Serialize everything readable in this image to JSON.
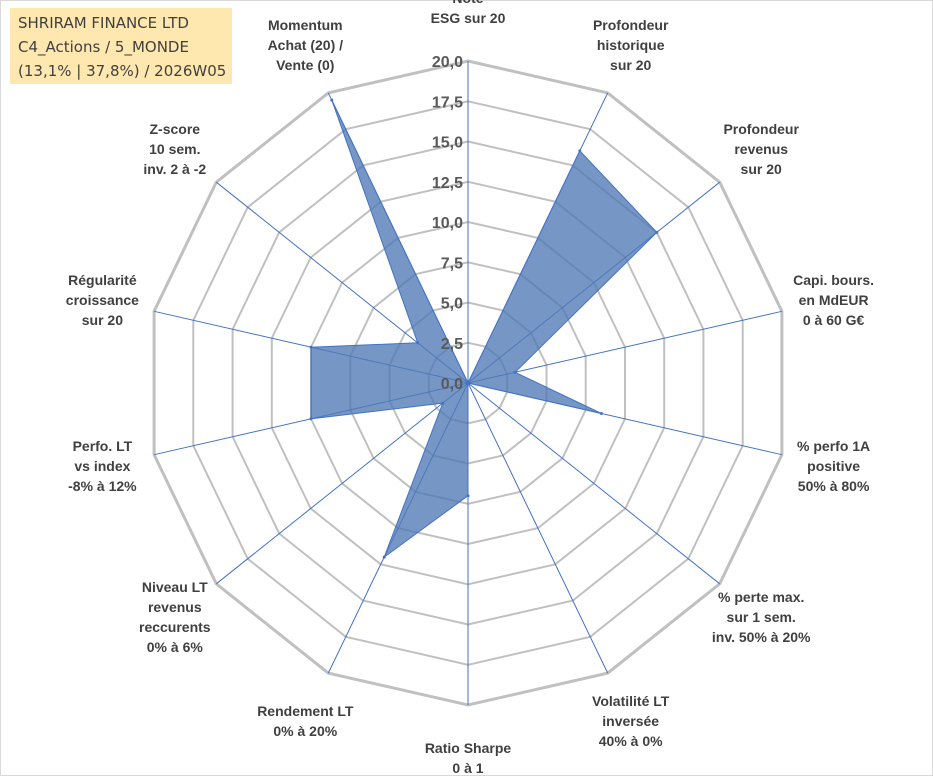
{
  "header": {
    "line1": "SHRIRAM FINANCE LTD",
    "line2": "C4_Actions / 5_MONDE",
    "line3": "(13,1% | 37,8%) / 2026W05"
  },
  "colors": {
    "fill": "#4f7ab5",
    "grid": "#c0c0c0",
    "spoke": "#4472c4",
    "text": "#404040",
    "title_bg": "#ffe8b0"
  },
  "chart_data": {
    "type": "radar",
    "title": "SHRIRAM FINANCE LTD",
    "rmax": 20,
    "tick_step": 2.5,
    "tick_labels": [
      "0,0",
      "2,5",
      "5,0",
      "7,5",
      "10,0",
      "12,5",
      "15,0",
      "17,5",
      "20,0"
    ],
    "axes": [
      {
        "label": [
          "Note",
          "ESG sur 20"
        ],
        "value": 0
      },
      {
        "label": [
          "Profondeur",
          "historique",
          "sur 20"
        ],
        "value": 16
      },
      {
        "label": [
          "Profondeur",
          "revenus",
          "sur 20"
        ],
        "value": 15
      },
      {
        "label": [
          "Capi. bours.",
          "en MdEUR",
          "0 à 60 G€"
        ],
        "value": 3
      },
      {
        "label": [
          "% perfo 1A",
          "positive",
          "50% à 80%"
        ],
        "value": 8.5
      },
      {
        "label": [
          "% perte max.",
          "sur 1 sem.",
          "inv. 50% à 20%"
        ],
        "value": 0
      },
      {
        "label": [
          "Volatilité LT",
          "inversée",
          "40% à 0%"
        ],
        "value": 0
      },
      {
        "label": [
          "Ratio Sharpe",
          "0 à 1"
        ],
        "value": 7
      },
      {
        "label": [
          "Rendement LT",
          "0% à 20%"
        ],
        "value": 12
      },
      {
        "label": [
          "Niveau LT",
          "revenus",
          "reccurents",
          "0% à 6%"
        ],
        "value": 2
      },
      {
        "label": [
          "Perfo. LT",
          "vs index",
          "-8% à 12%"
        ],
        "value": 10
      },
      {
        "label": [
          "Régularité",
          "croissance",
          "sur 20"
        ],
        "value": 10
      },
      {
        "label": [
          "Z-score",
          "10 sem.",
          "inv. 2 à -2"
        ],
        "value": 4
      },
      {
        "label": [
          "Momentum",
          "Achat (20) /",
          "Vente (0)"
        ],
        "value": 19.5
      }
    ]
  }
}
